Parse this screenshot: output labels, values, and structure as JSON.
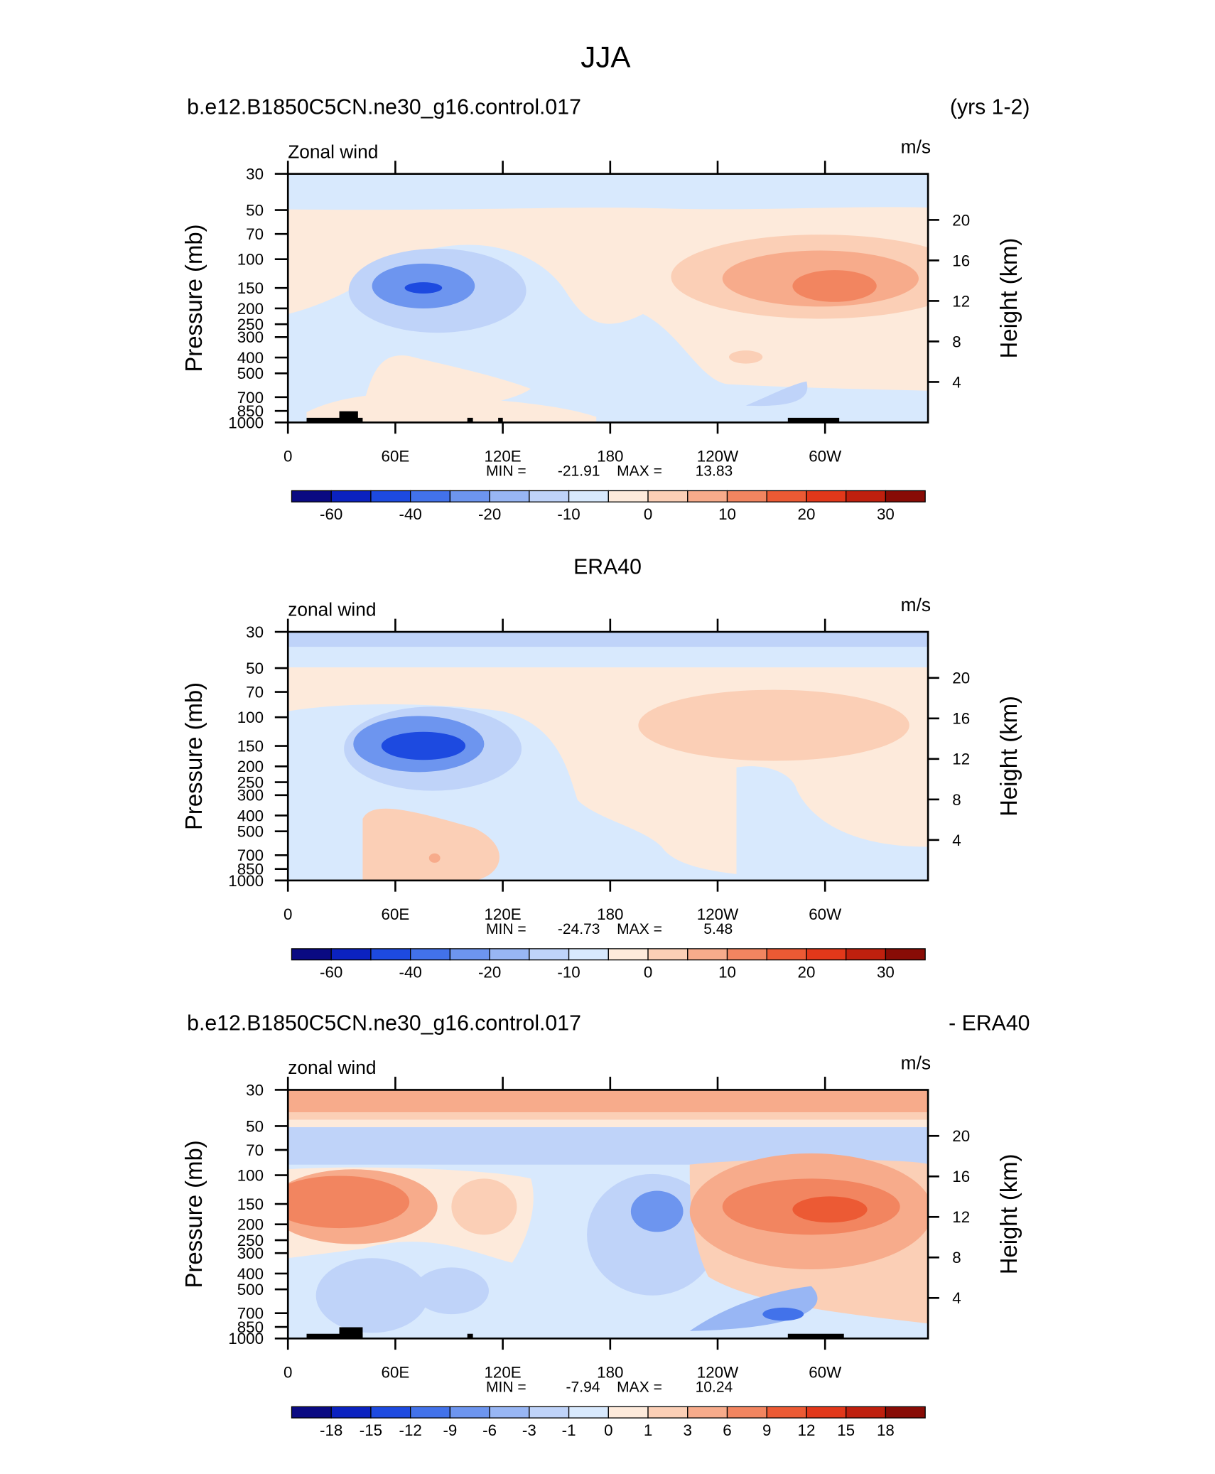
{
  "figure_title": "JJA",
  "chart_data": [
    {
      "type": "contour",
      "title_left": "b.e12.B1850C5CN.ne30_g16.control.017",
      "title_right": "(yrs 1-2)",
      "left_string": "Zonal wind",
      "right_string": "m/s",
      "ylabel": "Pressure (mb)",
      "y2label": "Height (km)",
      "log_y": true,
      "ylim": [
        1000,
        30
      ],
      "yticks": [
        30,
        50,
        70,
        100,
        150,
        200,
        250,
        300,
        400,
        500,
        700,
        850,
        1000
      ],
      "y2ticks": [
        4,
        8,
        12,
        16,
        20
      ],
      "xlim": [
        0,
        357.5
      ],
      "xticks": [
        0,
        {
          "value": 60,
          "label": "60E"
        },
        {
          "value": 120,
          "label": "120E"
        },
        180,
        {
          "value": 240,
          "label": "120W"
        },
        {
          "value": 300,
          "label": "60W"
        }
      ],
      "min_label": "MIN =",
      "min": -21.91,
      "max_label": "MAX =",
      "max": 13.83,
      "colorbar": {
        "colors": [
          "#0a0a82",
          "#0b22c0",
          "#1d4ae0",
          "#4272ea",
          "#6d95ef",
          "#98b6f4",
          "#bfd3f9",
          "#d8e9fd",
          "#fdeadb",
          "#fbcfb6",
          "#f7ab8b",
          "#f28560",
          "#ec5a34",
          "#e2381a",
          "#bf200e",
          "#880c06"
        ],
        "labels": [
          -60,
          -40,
          -20,
          -10,
          0,
          10,
          20,
          30
        ]
      }
    },
    {
      "type": "contour",
      "title": "ERA40",
      "left_string": "zonal wind",
      "right_string": "m/s",
      "ylabel": "Pressure (mb)",
      "y2label": "Height (km)",
      "log_y": true,
      "ylim": [
        1000,
        30
      ],
      "yticks": [
        30,
        50,
        70,
        100,
        150,
        200,
        250,
        300,
        400,
        500,
        700,
        850,
        1000
      ],
      "y2ticks": [
        4,
        8,
        12,
        16,
        20
      ],
      "xlim": [
        0,
        357.5
      ],
      "xticks": [
        0,
        {
          "value": 60,
          "label": "60E"
        },
        {
          "value": 120,
          "label": "120E"
        },
        180,
        {
          "value": 240,
          "label": "120W"
        },
        {
          "value": 300,
          "label": "60W"
        }
      ],
      "min_label": "MIN =",
      "min": -24.73,
      "max_label": "MAX =",
      "max": 5.48,
      "colorbar": {
        "colors": [
          "#0a0a82",
          "#0b22c0",
          "#1d4ae0",
          "#4272ea",
          "#6d95ef",
          "#98b6f4",
          "#bfd3f9",
          "#d8e9fd",
          "#fdeadb",
          "#fbcfb6",
          "#f7ab8b",
          "#f28560",
          "#ec5a34",
          "#e2381a",
          "#bf200e",
          "#880c06"
        ],
        "labels": [
          -60,
          -40,
          -20,
          -10,
          0,
          10,
          20,
          30
        ]
      }
    },
    {
      "type": "contour",
      "title_left": "b.e12.B1850C5CN.ne30_g16.control.017",
      "title_right": "- ERA40",
      "left_string": "zonal wind",
      "right_string": "m/s",
      "ylabel": "Pressure (mb)",
      "y2label": "Height (km)",
      "log_y": true,
      "ylim": [
        1000,
        30
      ],
      "yticks": [
        30,
        50,
        70,
        100,
        150,
        200,
        250,
        300,
        400,
        500,
        700,
        850,
        1000
      ],
      "y2ticks": [
        4,
        8,
        12,
        16,
        20
      ],
      "xlim": [
        0,
        357.5
      ],
      "xticks": [
        0,
        {
          "value": 60,
          "label": "60E"
        },
        {
          "value": 120,
          "label": "120E"
        },
        180,
        {
          "value": 240,
          "label": "120W"
        },
        {
          "value": 300,
          "label": "60W"
        }
      ],
      "min_label": "MIN =",
      "min": -7.94,
      "max_label": "MAX =",
      "max": 10.24,
      "colorbar": {
        "colors": [
          "#0a0a82",
          "#0b22c0",
          "#1d4ae0",
          "#4272ea",
          "#6d95ef",
          "#98b6f4",
          "#bfd3f9",
          "#d8e9fd",
          "#fdeadb",
          "#fbcfb6",
          "#f7ab8b",
          "#f28560",
          "#ec5a34",
          "#e2381a",
          "#bf200e",
          "#880c06"
        ],
        "labels": [
          -18,
          -15,
          -12,
          -9,
          -6,
          -3,
          -1,
          0,
          1,
          3,
          6,
          9,
          12,
          15,
          18
        ]
      }
    }
  ]
}
